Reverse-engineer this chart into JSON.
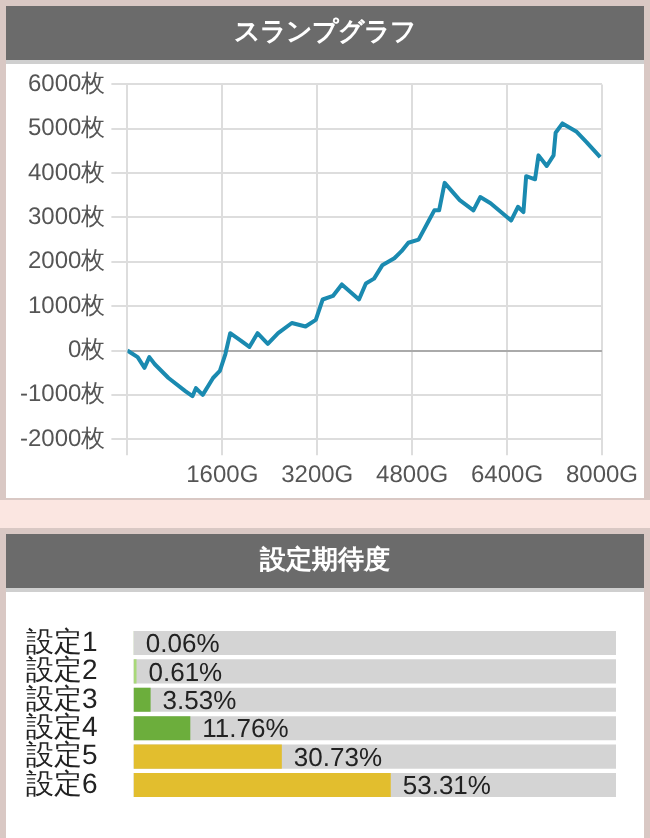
{
  "chart_data": [
    {
      "type": "line",
      "title": "スランプグラフ",
      "x": [
        0,
        173,
        289,
        370,
        462,
        693,
        982,
        1097,
        1155,
        1270,
        1444,
        1559,
        1652,
        1733,
        1906,
        2056,
        2194,
        2367,
        2541,
        2772,
        3003,
        3176,
        3292,
        3465,
        3615,
        3904,
        4020,
        4158,
        4296,
        4500,
        4621,
        4736,
        4909,
        5082,
        5174,
        5255,
        5348,
        5602,
        5833,
        5948,
        6122,
        6468,
        6584,
        6676,
        6722,
        6872,
        6930,
        7069,
        7184,
        7219,
        7334,
        7566,
        7739,
        7970
      ],
      "series": [
        {
          "color": "#1a8ab0",
          "values": [
            0,
            -150,
            -390,
            -150,
            -310,
            -620,
            -920,
            -1030,
            -850,
            -1000,
            -620,
            -460,
            -80,
            390,
            230,
            80,
            390,
            150,
            390,
            620,
            540,
            690,
            1150,
            1230,
            1490,
            1150,
            1510,
            1620,
            1920,
            2080,
            2240,
            2430,
            2500,
            2930,
            3160,
            3160,
            3780,
            3390,
            3160,
            3460,
            3320,
            2930,
            3240,
            3120,
            3930,
            3860,
            4400,
            4160,
            4400,
            4910,
            5120,
            4940,
            4700,
            4360
          ]
        }
      ],
      "xlim": [
        0,
        8000
      ],
      "xticks": [
        {
          "value": 0,
          "label": null
        },
        {
          "value": 1600,
          "label": "1600G"
        },
        {
          "value": 3200,
          "label": "3200G"
        },
        {
          "value": 4800,
          "label": "4800G"
        },
        {
          "value": 6400,
          "label": "6400G"
        },
        {
          "value": 8000,
          "label": "8000G"
        }
      ],
      "ylim": [
        -2000,
        6000
      ],
      "yticks": [
        {
          "value": -2000,
          "label": "-2000枚"
        },
        {
          "value": -1000,
          "label": "-1000枚"
        },
        {
          "value": 0,
          "label": "0枚"
        },
        {
          "value": 1000,
          "label": "1000枚"
        },
        {
          "value": 2000,
          "label": "2000枚"
        },
        {
          "value": 3000,
          "label": "3000枚"
        },
        {
          "value": 4000,
          "label": "4000枚"
        },
        {
          "value": 5000,
          "label": "5000枚"
        },
        {
          "value": 6000,
          "label": "6000枚"
        }
      ],
      "grid": true,
      "legend": false,
      "marker": "none",
      "line_style": "solid"
    },
    {
      "type": "bar",
      "title": "設定期待度",
      "orientation": "horizontal",
      "categories": [
        "設定1",
        "設定2",
        "設定3",
        "設定4",
        "設定5",
        "設定6"
      ],
      "values": [
        0.06,
        0.61,
        3.53,
        11.76,
        30.73,
        53.31
      ],
      "colors": [
        "#a8d878",
        "#a8d878",
        "#6cae3c",
        "#6cae3c",
        "#e2be2e",
        "#e2be2e"
      ],
      "value_labels": [
        "0.06%",
        "0.61%",
        "3.53%",
        "11.76%",
        "30.73%",
        "53.31%"
      ],
      "xlim": [
        0,
        100
      ],
      "tick_labels": "y",
      "grid": false,
      "legend": false
    }
  ]
}
